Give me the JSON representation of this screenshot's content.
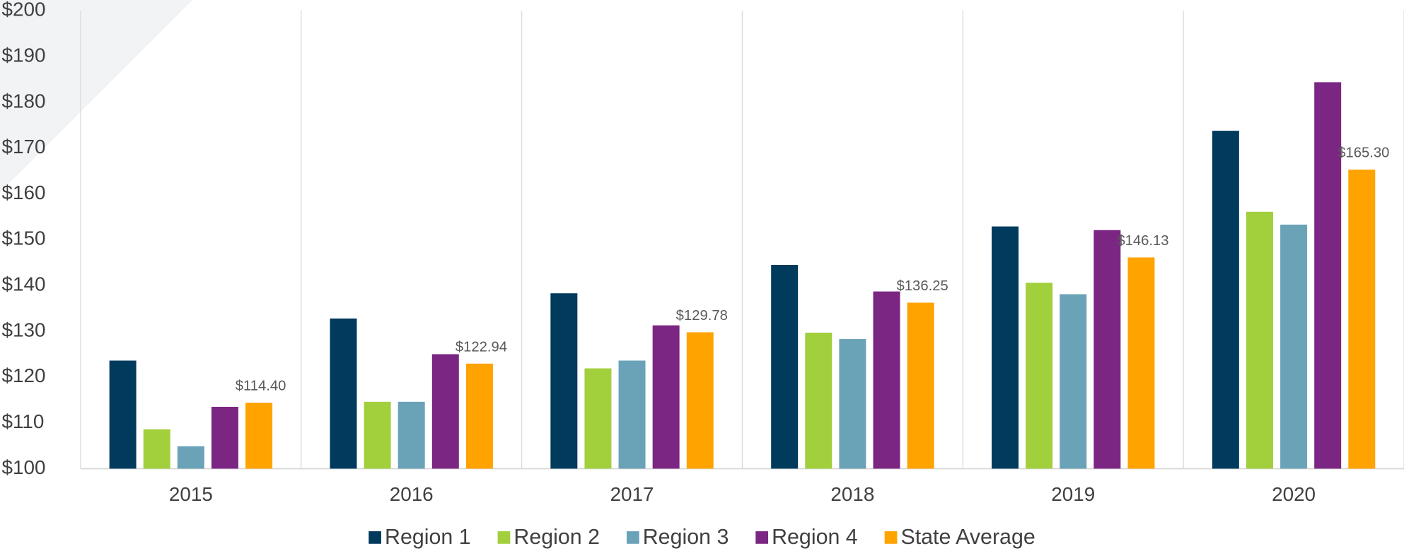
{
  "chart_data": {
    "type": "bar",
    "categories": [
      "2015",
      "2016",
      "2017",
      "2018",
      "2019",
      "2020"
    ],
    "series": [
      {
        "name": "Region 1",
        "color": "#003a5d",
        "values": [
          123.6,
          132.8,
          138.3,
          144.5,
          152.9,
          173.8
        ]
      },
      {
        "name": "Region 2",
        "color": "#a2cf3c",
        "values": [
          108.6,
          114.6,
          121.9,
          129.7,
          140.6,
          156.1
        ]
      },
      {
        "name": "Region 3",
        "color": "#6aa2b8",
        "values": [
          104.9,
          114.6,
          123.6,
          128.3,
          138.1,
          153.3
        ]
      },
      {
        "name": "Region 4",
        "color": "#7b2682",
        "values": [
          113.5,
          125.0,
          131.3,
          138.7,
          152.1,
          184.4
        ]
      },
      {
        "name": "State Average",
        "color": "#ffa300",
        "values": [
          114.4,
          122.94,
          129.78,
          136.25,
          146.13,
          165.3
        ],
        "value_labels": [
          "$114.40",
          "$122.94",
          "$129.78",
          "$136.25",
          "$146.13",
          "$165.30"
        ]
      }
    ],
    "ylim": [
      100,
      200
    ],
    "yticks": [
      {
        "value": 100,
        "label": "$100"
      },
      {
        "value": 110,
        "label": "$110"
      },
      {
        "value": 120,
        "label": "$120"
      },
      {
        "value": 130,
        "label": "$130"
      },
      {
        "value": 140,
        "label": "$140"
      },
      {
        "value": 150,
        "label": "$150"
      },
      {
        "value": 160,
        "label": "$160"
      },
      {
        "value": 170,
        "label": "$170"
      },
      {
        "value": 180,
        "label": "$180"
      },
      {
        "value": 190,
        "label": "$190"
      },
      {
        "value": 200,
        "label": "$200"
      }
    ],
    "legend": "bottom"
  }
}
